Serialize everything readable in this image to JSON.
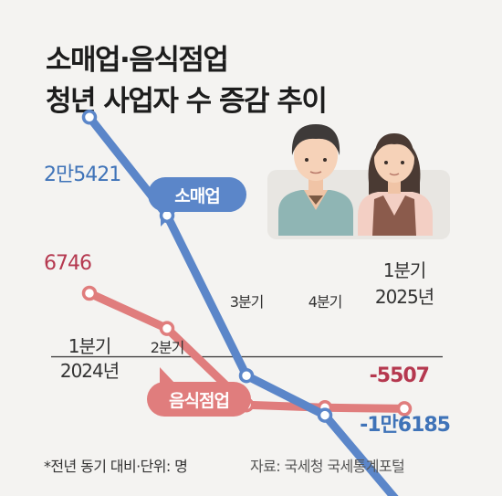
{
  "title_line1": "소매업·음식점업",
  "title_line2": "청년 사업자 수 증감 추이",
  "legend": {
    "retail": "소매업",
    "food": "음식점업"
  },
  "footnote": "*전년 동기 대비·단위: 명",
  "source": "자료: 국세청 국세통계포털",
  "colors": {
    "retail": "#5b86c9",
    "food": "#e07d7d",
    "retail_label": "#3f73b8",
    "food_label": "#b5384f"
  },
  "chart_data": {
    "type": "line",
    "categories": [
      "1분기 2024년",
      "2분기",
      "3분기",
      "4분기",
      "1분기 2025년"
    ],
    "x_labels": [
      {
        "line1": "1분기",
        "line2": "2024년"
      },
      {
        "line1": "2분기",
        "line2": ""
      },
      {
        "line1": "3분기",
        "line2": ""
      },
      {
        "line1": "4분기",
        "line2": ""
      },
      {
        "line1": "1분기",
        "line2": "2025년"
      }
    ],
    "series": [
      {
        "name": "소매업",
        "values": [
          25421,
          15000,
          -2000,
          -6200,
          -16185
        ],
        "start_label": "2만5421",
        "end_label": "-1만6185"
      },
      {
        "name": "음식점업",
        "values": [
          6746,
          3000,
          -5100,
          -5400,
          -5507
        ],
        "start_label": "6746",
        "end_label": "-5507"
      }
    ],
    "ylim": [
      -17000,
      27000
    ]
  }
}
